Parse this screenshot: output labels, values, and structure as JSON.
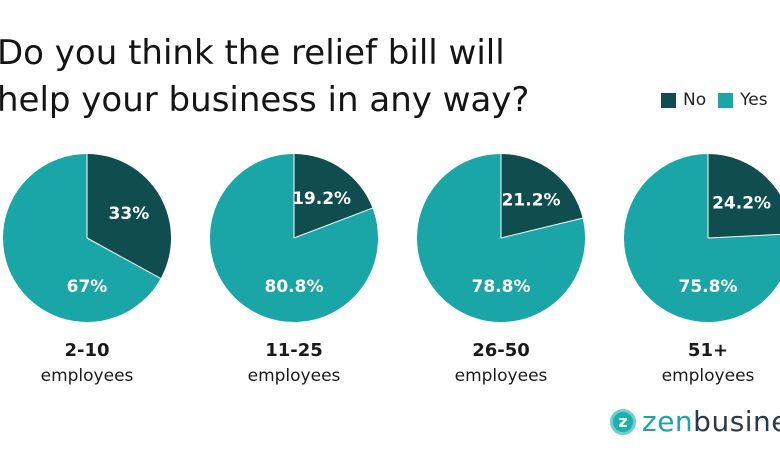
{
  "chart_data": {
    "type": "pie",
    "title": "Do you think the relief bill will help your business in any way?",
    "title_lines": [
      "Do you think the relief bill will",
      "help your business in any way?"
    ],
    "legend": [
      {
        "name": "No",
        "color": "#0f4d4f"
      },
      {
        "name": "Yes",
        "color": "#1aa6a6"
      }
    ],
    "legend_placement": "top-right",
    "pies": [
      {
        "category_top": "2-10",
        "category_bottom": "employees",
        "no": 33,
        "yes": 67,
        "no_label": "33%",
        "yes_label": "67%"
      },
      {
        "category_top": "11-25",
        "category_bottom": "employees",
        "no": 19.2,
        "yes": 80.8,
        "no_label": "19.2%",
        "yes_label": "80.8%"
      },
      {
        "category_top": "26-50",
        "category_bottom": "employees",
        "no": 21.2,
        "yes": 78.8,
        "no_label": "21.2%",
        "yes_label": "78.8%"
      },
      {
        "category_top": "51+",
        "category_bottom": "employees",
        "no": 24.2,
        "yes": 75.8,
        "no_label": "24.2%",
        "yes_label": "75.8%"
      }
    ]
  },
  "brand": {
    "logo_mark": "z",
    "name_part1": "zen",
    "name_part2": "business"
  }
}
